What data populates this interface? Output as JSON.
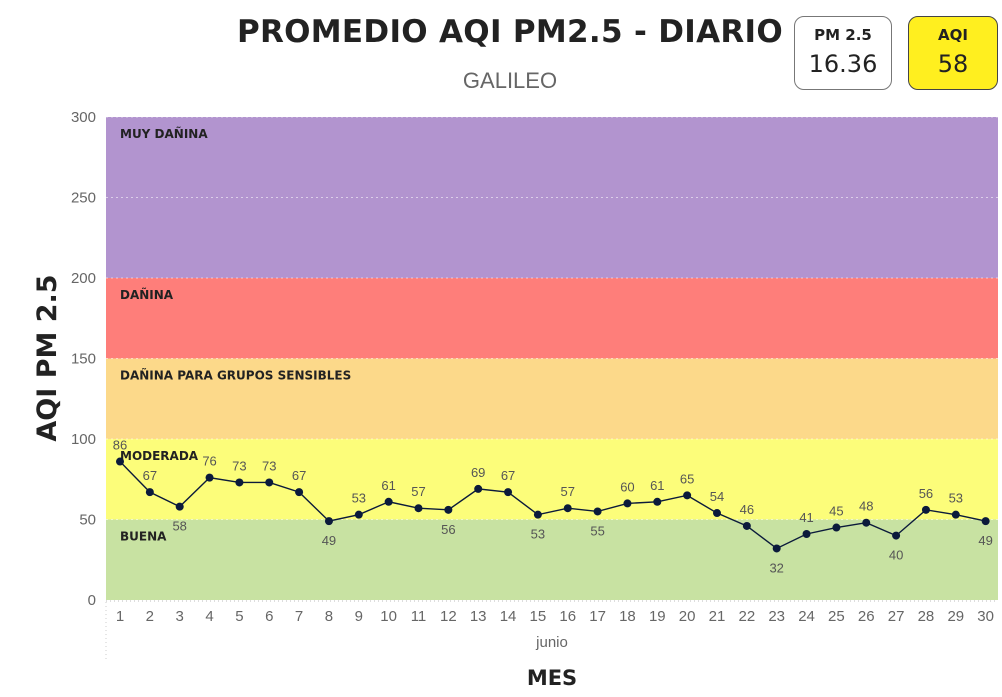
{
  "header": {
    "title": "PROMEDIO AQI PM2.5 - DIARIO",
    "subtitle": "GALILEO"
  },
  "kpis": {
    "pm": {
      "label": "PM 2.5",
      "value": "16.36"
    },
    "aqi": {
      "label": "AQI",
      "value": "58",
      "color": "#ffef1f"
    }
  },
  "chart_data": {
    "type": "line",
    "xlabel": "MES",
    "x_group_label": "junio",
    "ylabel": "AQI PM 2.5",
    "ylim": [
      0,
      300
    ],
    "yticks": [
      0,
      50,
      100,
      150,
      200,
      250,
      300
    ],
    "x": [
      1,
      2,
      3,
      4,
      5,
      6,
      7,
      8,
      9,
      10,
      11,
      12,
      13,
      14,
      15,
      16,
      17,
      18,
      19,
      20,
      21,
      22,
      23,
      24,
      25,
      26,
      27,
      28,
      29,
      30
    ],
    "series": [
      {
        "values": [
          86,
          67,
          58,
          76,
          73,
          73,
          67,
          49,
          53,
          61,
          57,
          56,
          69,
          67,
          53,
          57,
          55,
          60,
          61,
          65,
          54,
          46,
          32,
          41,
          45,
          48,
          40,
          56,
          53,
          49
        ],
        "color": "#0b1a3b"
      }
    ],
    "label_below": [
      3,
      8,
      12,
      15,
      17,
      23,
      27,
      30
    ],
    "bands": [
      {
        "label": "BUENA",
        "from": 0,
        "to": 50,
        "color": "#c8e2a2"
      },
      {
        "label": "MODERADA",
        "from": 50,
        "to": 100,
        "color": "#fcfd7a"
      },
      {
        "label": "DAÑINA PARA GRUPOS SENSIBLES",
        "from": 100,
        "to": 150,
        "color": "#fcd98a"
      },
      {
        "label": "DAÑINA",
        "from": 150,
        "to": 200,
        "color": "#fe7e7a"
      },
      {
        "label": "MUY DAÑINA",
        "from": 200,
        "to": 300,
        "color": "#b294cf"
      }
    ]
  }
}
